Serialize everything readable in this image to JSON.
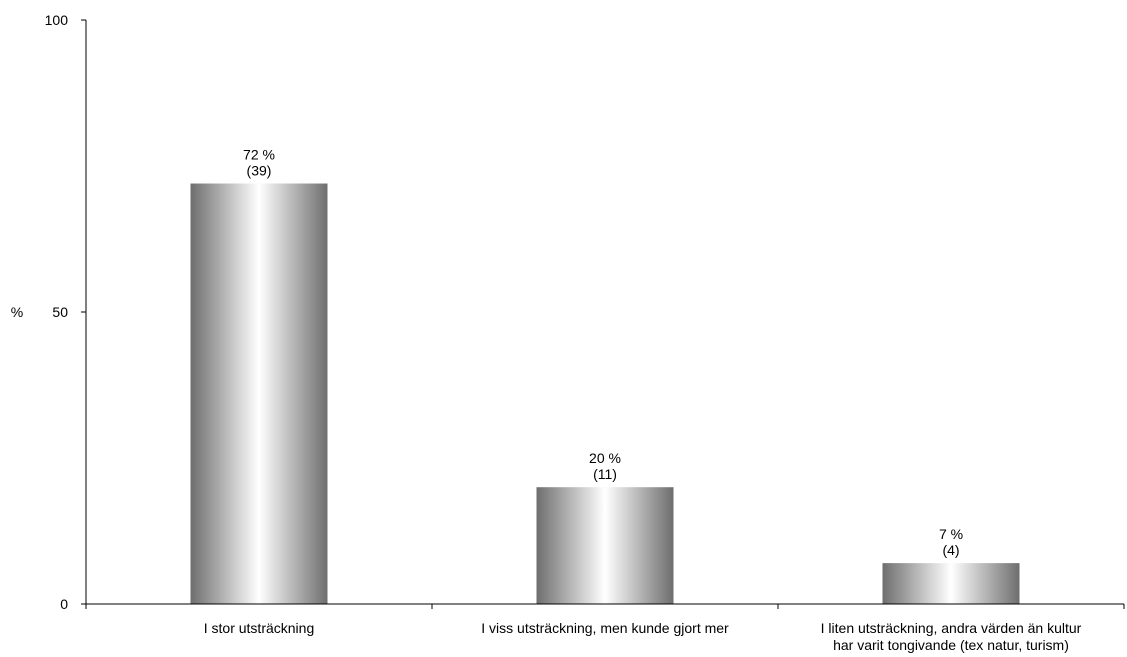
{
  "chart_data": {
    "type": "bar",
    "ylabel": "%",
    "ylim": [
      0,
      100
    ],
    "yticks": [
      "0",
      "50",
      "100"
    ],
    "categories": [
      [
        "I stor utsträckning"
      ],
      [
        "I viss utsträckning, men kunde gjort mer"
      ],
      [
        "I liten utsträckning, andra värden än kultur",
        "har varit tongivande (tex natur, turism)"
      ]
    ],
    "values": [
      72,
      20,
      7
    ],
    "value_labels": [
      "72 %",
      "20 %",
      "7 %"
    ],
    "count_labels": [
      "(39)",
      "(11)",
      "(4)"
    ],
    "grid": false,
    "legend": "none",
    "colors": {
      "bar_edge": "#6e6e6e",
      "bar_center": "#ffffff",
      "axis": "#000000",
      "text": "#000000"
    }
  }
}
